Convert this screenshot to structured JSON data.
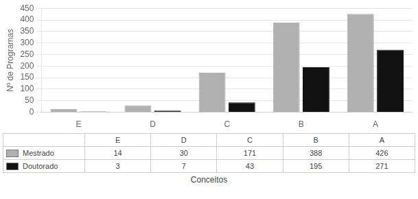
{
  "chart_data": {
    "type": "bar",
    "categories": [
      "E",
      "D",
      "C",
      "B",
      "A"
    ],
    "series": [
      {
        "name": "Mestrado",
        "color": "#b0b0b0",
        "values": [
          14,
          30,
          171,
          388,
          426
        ]
      },
      {
        "name": "Doutorado",
        "color": "#111111",
        "values": [
          3,
          7,
          43,
          195,
          271
        ]
      }
    ],
    "y_label": "Nº de Programas",
    "x_label": "Conceitos",
    "ylim": [
      0,
      450
    ],
    "yticks": [
      0,
      50,
      100,
      150,
      200,
      250,
      300,
      350,
      400,
      450
    ],
    "grid": true
  }
}
